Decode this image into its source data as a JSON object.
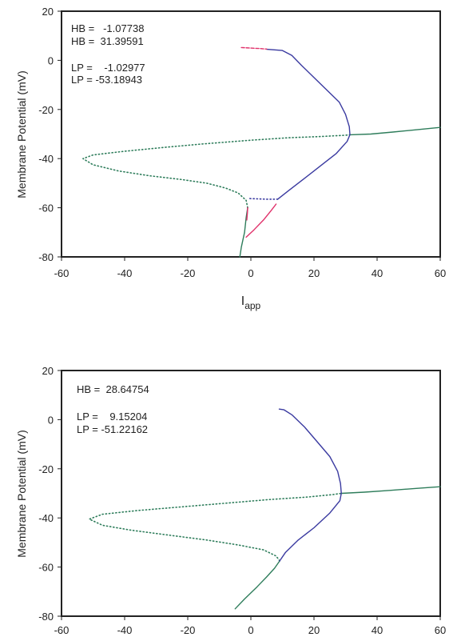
{
  "chart_data": [
    {
      "type": "line",
      "title": "",
      "ylabel": "Membrane Potential (mV)",
      "xlabel_main": "I",
      "xlabel_sub": "app",
      "xlim": [
        -60,
        60
      ],
      "ylim": [
        -80,
        20
      ],
      "xticks": [
        "-60",
        "-40",
        "-20",
        "0",
        "20",
        "40",
        "60"
      ],
      "yticks": [
        "20",
        "0",
        "-20",
        "-40",
        "-60",
        "-80"
      ],
      "annotations": [
        "HB =   -1.07738",
        "HB =  31.39591",
        "LP =    -1.02977",
        "LP = -53.18943"
      ],
      "series": [
        {
          "style": "solid",
          "color": "#2e7d5b",
          "points": [
            [
              -3.5,
              -80
            ],
            [
              -3,
              -76
            ],
            [
              -2,
              -70
            ],
            [
              -1.5,
              -64
            ],
            [
              -1.0,
              -60
            ]
          ]
        },
        {
          "style": "dotted",
          "color": "#2e7d5b",
          "points": [
            [
              -1.0,
              -60
            ],
            [
              -1.5,
              -57
            ],
            [
              -4,
              -54
            ],
            [
              -8,
              -52
            ],
            [
              -14,
              -50
            ],
            [
              -22,
              -48.5
            ],
            [
              -32,
              -47
            ],
            [
              -42,
              -45
            ],
            [
              -50,
              -42.5
            ],
            [
              -53.2,
              -40
            ],
            [
              -50,
              -38.5
            ],
            [
              -40,
              -37
            ],
            [
              -28,
              -35.5
            ],
            [
              -15,
              -34
            ],
            [
              0,
              -32.5
            ],
            [
              12,
              -31.5
            ],
            [
              22,
              -31
            ],
            [
              30,
              -30.5
            ],
            [
              31.4,
              -30.3
            ]
          ]
        },
        {
          "style": "solid",
          "color": "#2e7d5b",
          "points": [
            [
              31.4,
              -30.3
            ],
            [
              38,
              -30
            ],
            [
              45,
              -29.2
            ],
            [
              52,
              -28.3
            ],
            [
              60,
              -27.3
            ]
          ]
        },
        {
          "style": "solid",
          "color": "#3a3aa0",
          "points": [
            [
              8.5,
              -56.5
            ],
            [
              12,
              -53
            ],
            [
              17,
              -48
            ],
            [
              22,
              -43
            ],
            [
              27,
              -38
            ],
            [
              30.5,
              -33
            ],
            [
              31.4,
              -30.3
            ],
            [
              31.2,
              -27
            ],
            [
              30,
              -22
            ],
            [
              28,
              -17
            ],
            [
              24,
              -12
            ],
            [
              20,
              -7
            ],
            [
              16,
              -2
            ],
            [
              13,
              2
            ],
            [
              10,
              4
            ],
            [
              5,
              4.5
            ]
          ]
        },
        {
          "style": "dotted",
          "color": "#3a3aa0",
          "points": [
            [
              8.5,
              -56.5
            ],
            [
              5,
              -56.5
            ],
            [
              0,
              -56.3
            ],
            [
              -1.0,
              -56.2
            ]
          ]
        },
        {
          "style": "solid",
          "color": "#e0306a",
          "points": [
            [
              -1.0,
              -60
            ],
            [
              -1.1,
              -62
            ],
            [
              -1.3,
              -65
            ]
          ]
        },
        {
          "style": "solid",
          "color": "#e0306a",
          "points": [
            [
              -1.5,
              -72
            ],
            [
              1,
              -69
            ],
            [
              4,
              -65
            ],
            [
              6.5,
              -61
            ],
            [
              8,
              -58.5
            ]
          ]
        },
        {
          "style": "dashed",
          "color": "#e0306a",
          "points": [
            [
              -3.0,
              5.2
            ],
            [
              0,
              5.0
            ],
            [
              3,
              4.8
            ],
            [
              5,
              4.6
            ]
          ]
        }
      ]
    },
    {
      "type": "line",
      "title": "",
      "ylabel": "Membrane Potential (mV)",
      "xlim": [
        -60,
        60
      ],
      "ylim": [
        -80,
        20
      ],
      "xticks": [
        "-60",
        "-40",
        "-20",
        "0",
        "20",
        "40",
        "60"
      ],
      "yticks": [
        "20",
        "0",
        "-20",
        "-40",
        "-60",
        "-80"
      ],
      "annotations": [
        "HB =  28.64754",
        "LP =    9.15204",
        "LP = -51.22162"
      ],
      "series": [
        {
          "style": "solid",
          "color": "#2e7d5b",
          "points": [
            [
              -5,
              -77
            ],
            [
              -2,
              -73
            ],
            [
              2,
              -68
            ],
            [
              5,
              -64
            ],
            [
              7.5,
              -60.5
            ],
            [
              9.15,
              -57.5
            ]
          ]
        },
        {
          "style": "dotted",
          "color": "#2e7d5b",
          "points": [
            [
              9.15,
              -57.5
            ],
            [
              8,
              -55.5
            ],
            [
              4,
              -53
            ],
            [
              -4,
              -51
            ],
            [
              -14,
              -49
            ],
            [
              -26,
              -47
            ],
            [
              -38,
              -45
            ],
            [
              -47,
              -43
            ],
            [
              -51.2,
              -40.5
            ],
            [
              -47,
              -38.5
            ],
            [
              -36,
              -37
            ],
            [
              -22,
              -35.5
            ],
            [
              -8,
              -34
            ],
            [
              6,
              -32.5
            ],
            [
              18,
              -31.5
            ],
            [
              26,
              -30.5
            ],
            [
              28.65,
              -30
            ]
          ]
        },
        {
          "style": "solid",
          "color": "#2e7d5b",
          "points": [
            [
              28.65,
              -30
            ],
            [
              36,
              -29.5
            ],
            [
              44,
              -28.8
            ],
            [
              52,
              -28
            ],
            [
              60,
              -27.3
            ]
          ]
        },
        {
          "style": "solid",
          "color": "#3a3aa0",
          "points": [
            [
              9.15,
              -57.5
            ],
            [
              11,
              -54
            ],
            [
              15,
              -49
            ],
            [
              20,
              -44
            ],
            [
              25,
              -38
            ],
            [
              28.2,
              -33
            ],
            [
              28.65,
              -30
            ],
            [
              28.4,
              -26
            ],
            [
              27.5,
              -21
            ],
            [
              25,
              -15
            ],
            [
              21,
              -9
            ],
            [
              17,
              -3
            ],
            [
              13,
              2
            ],
            [
              10.5,
              4
            ],
            [
              9,
              4.3
            ]
          ]
        }
      ]
    }
  ]
}
